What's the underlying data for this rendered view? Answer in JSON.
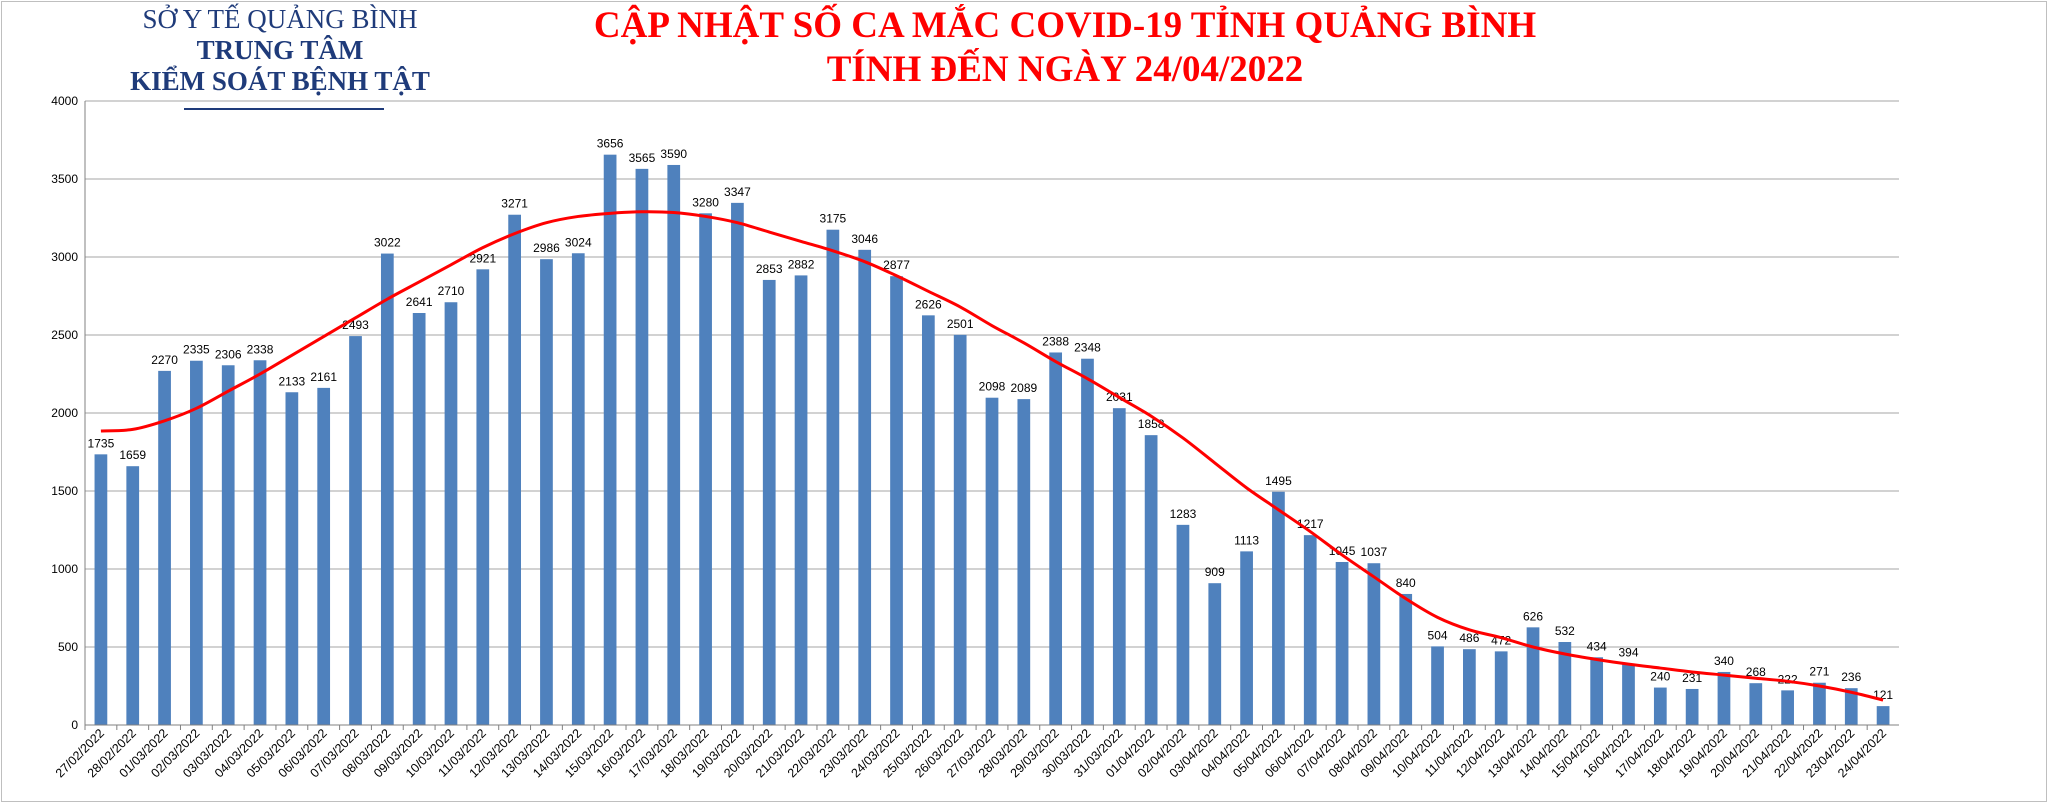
{
  "header": {
    "org_line1": "SỞ Y TẾ QUẢNG BÌNH",
    "org_line2": "TRUNG TÂM",
    "org_line3": "KIỂM SOÁT BỆNH TẬT",
    "title_line1": "CẬP NHẬT SỐ CA MẮC COVID-19 TỈNH QUẢNG BÌNH",
    "title_line2": "TÍNH ĐẾN NGÀY 24/04/2022"
  },
  "colors": {
    "bar": "#4f81bd",
    "trend": "#ff0000",
    "grid": "#a6a6a6",
    "title": "#ff0000",
    "org": "#1f3b7a"
  },
  "chart_data": {
    "type": "bar",
    "title": "CẬP NHẬT SỐ CA MẮC COVID-19 TỈNH QUẢNG BÌNH TÍNH ĐẾN NGÀY 24/04/2022",
    "xlabel": "",
    "ylabel": "",
    "ylim": [
      0,
      4000
    ],
    "yticks": [
      0,
      500,
      1000,
      1500,
      2000,
      2500,
      3000,
      3500,
      4000
    ],
    "grid": true,
    "trendline": "polynomial",
    "categories": [
      "27/02/2022",
      "28/02/2022",
      "01/03/2022",
      "02/03/2022",
      "03/03/2022",
      "04/03/2022",
      "05/03/2022",
      "06/03/2022",
      "07/03/2022",
      "08/03/2022",
      "09/03/2022",
      "10/03/2022",
      "11/03/2022",
      "12/03/2022",
      "13/03/2022",
      "14/03/2022",
      "15/03/2022",
      "16/03/2022",
      "17/03/2022",
      "18/03/2022",
      "19/03/2022",
      "20/03/2022",
      "21/03/2022",
      "22/03/2022",
      "23/03/2022",
      "24/03/2022",
      "25/03/2022",
      "26/03/2022",
      "27/03/2022",
      "28/03/2022",
      "29/03/2022",
      "30/03/2022",
      "31/03/2022",
      "01/04/2022",
      "02/04/2022",
      "03/04/2022",
      "04/04/2022",
      "05/04/2022",
      "06/04/2022",
      "07/04/2022",
      "08/04/2022",
      "09/04/2022",
      "10/04/2022",
      "11/04/2022",
      "12/04/2022",
      "13/04/2022",
      "14/04/2022",
      "15/04/2022",
      "16/04/2022",
      "17/04/2022",
      "18/04/2022",
      "19/04/2022",
      "20/04/2022",
      "21/04/2022",
      "22/04/2022",
      "23/04/2022",
      "24/04/2022"
    ],
    "values": [
      1735,
      1659,
      2270,
      2335,
      2306,
      2338,
      2133,
      2161,
      2493,
      3022,
      2641,
      2710,
      2921,
      3271,
      2986,
      3024,
      3656,
      3565,
      3590,
      3280,
      3347,
      2853,
      2882,
      3175,
      3046,
      2877,
      2626,
      2501,
      2098,
      2089,
      2388,
      2348,
      2031,
      1858,
      1283,
      909,
      1113,
      1495,
      1217,
      1045,
      1037,
      840,
      504,
      486,
      472,
      626,
      532,
      434,
      394,
      240,
      231,
      340,
      268,
      222,
      271,
      236,
      121
    ],
    "trend_values": [
      1885,
      1895,
      1950,
      2030,
      2140,
      2250,
      2370,
      2490,
      2610,
      2730,
      2840,
      2950,
      3060,
      3150,
      3220,
      3260,
      3280,
      3290,
      3285,
      3260,
      3220,
      3160,
      3100,
      3040,
      2970,
      2880,
      2780,
      2680,
      2560,
      2450,
      2330,
      2220,
      2100,
      1980,
      1840,
      1680,
      1520,
      1380,
      1240,
      1090,
      950,
      810,
      690,
      610,
      560,
      500,
      455,
      420,
      390,
      365,
      340,
      320,
      300,
      280,
      250,
      210,
      160
    ]
  }
}
